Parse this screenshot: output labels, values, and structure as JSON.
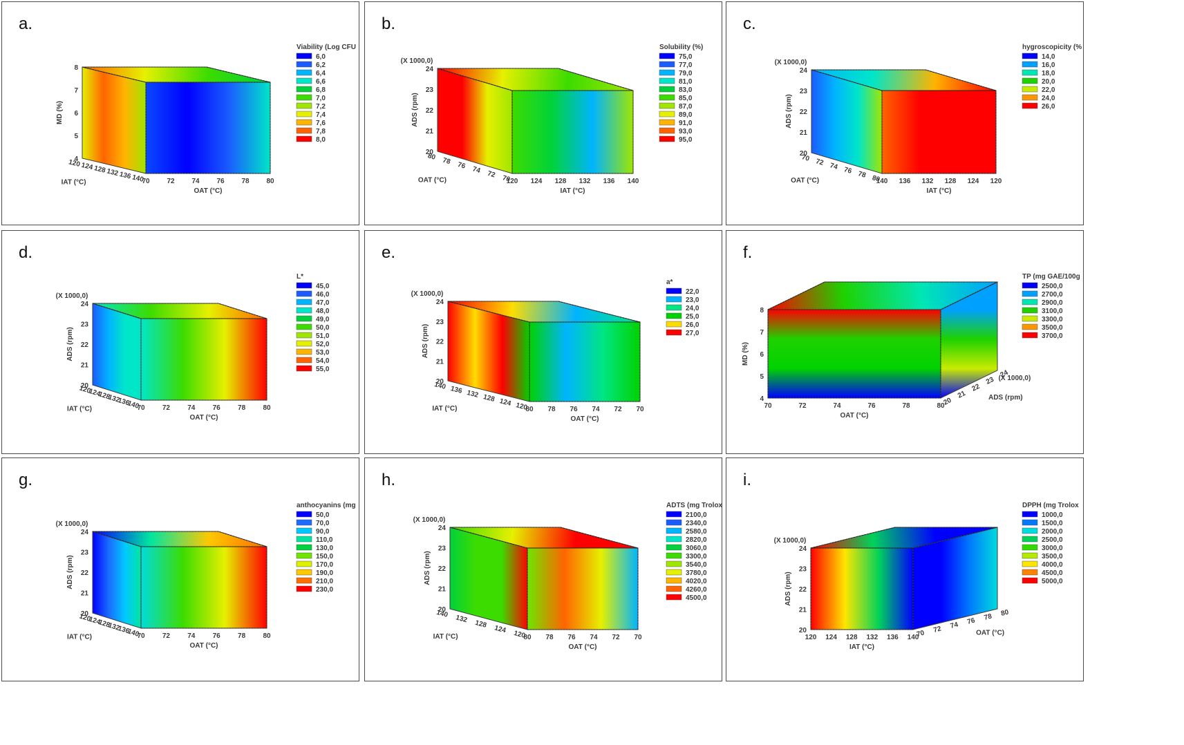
{
  "chart_data": [
    {
      "label": "a.",
      "type": "surface3d",
      "legend_title": "Viability (Log CFU",
      "legend_values": [
        "6,0",
        "6,2",
        "6,4",
        "6,6",
        "6,8",
        "7,0",
        "7,2",
        "7,4",
        "7,6",
        "7,8",
        "8,0"
      ],
      "left_axis": {
        "label": "MD (%)",
        "ticks": [
          "4",
          "5",
          "6",
          "7",
          "8"
        ],
        "multiplier": ""
      },
      "depth_axis": {
        "label": "IAT (°C)",
        "ticks": [
          "120",
          "124",
          "128",
          "132",
          "136",
          "140"
        ]
      },
      "front_axis": {
        "label": "OAT (°C)",
        "ticks": [
          "70",
          "72",
          "74",
          "76",
          "78",
          "80"
        ]
      },
      "right_axis": null
    },
    {
      "label": "b.",
      "type": "surface3d",
      "legend_title": "Solubility (%)",
      "legend_values": [
        "75,0",
        "77,0",
        "79,0",
        "81,0",
        "83,0",
        "85,0",
        "87,0",
        "89,0",
        "91,0",
        "93,0",
        "95,0"
      ],
      "left_axis": {
        "label": "ADS (rpm)",
        "ticks": [
          "20",
          "21",
          "22",
          "23",
          "24"
        ],
        "multiplier": "(X 1000,0)"
      },
      "depth_axis": {
        "label": "OAT (°C)",
        "ticks": [
          "80",
          "78",
          "76",
          "74",
          "72",
          "70"
        ]
      },
      "front_axis": {
        "label": "IAT (°C)",
        "ticks": [
          "120",
          "124",
          "128",
          "132",
          "136",
          "140"
        ]
      },
      "right_axis": null
    },
    {
      "label": "c.",
      "type": "surface3d",
      "legend_title": "hygroscopicity (%",
      "legend_values": [
        "14,0",
        "16,0",
        "18,0",
        "20,0",
        "22,0",
        "24,0",
        "26,0"
      ],
      "left_axis": {
        "label": "ADS (rpm)",
        "ticks": [
          "20",
          "21",
          "22",
          "23",
          "24"
        ],
        "multiplier": "(X 1000,0)"
      },
      "depth_axis": {
        "label": "OAT (°C)",
        "ticks": [
          "70",
          "72",
          "74",
          "76",
          "78",
          "80"
        ]
      },
      "front_axis": {
        "label": "IAT (°C)",
        "ticks": [
          "140",
          "136",
          "132",
          "128",
          "124",
          "120"
        ]
      },
      "right_axis": null
    },
    {
      "label": "d.",
      "type": "surface3d",
      "legend_title": "L*",
      "legend_values": [
        "45,0",
        "46,0",
        "47,0",
        "48,0",
        "49,0",
        "50,0",
        "51,0",
        "52,0",
        "53,0",
        "54,0",
        "55,0"
      ],
      "left_axis": {
        "label": "ADS (rpm)",
        "ticks": [
          "20",
          "21",
          "22",
          "23",
          "24"
        ],
        "multiplier": "(X 1000,0)"
      },
      "depth_axis": {
        "label": "IAT (°C)",
        "ticks": [
          "120",
          "124",
          "128",
          "132",
          "136",
          "140"
        ]
      },
      "front_axis": {
        "label": "OAT (°C)",
        "ticks": [
          "70",
          "72",
          "74",
          "76",
          "78",
          "80"
        ]
      },
      "right_axis": null
    },
    {
      "label": "e.",
      "type": "surface3d",
      "legend_title": "a*",
      "legend_values": [
        "22,0",
        "23,0",
        "24,0",
        "25,0",
        "26,0",
        "27,0"
      ],
      "left_axis": {
        "label": "ADS (rpm)",
        "ticks": [
          "20",
          "21",
          "22",
          "23",
          "24"
        ],
        "multiplier": "(X 1000,0)"
      },
      "depth_axis": {
        "label": "IAT (°C)",
        "ticks": [
          "140",
          "136",
          "132",
          "128",
          "124",
          "120"
        ]
      },
      "front_axis": {
        "label": "OAT (°C)",
        "ticks": [
          "80",
          "78",
          "76",
          "74",
          "72",
          "70"
        ]
      },
      "right_axis": null
    },
    {
      "label": "f.",
      "type": "surface3d",
      "legend_title": "TP (mg GAE/100g",
      "legend_values": [
        "2500,0",
        "2700,0",
        "2900,0",
        "3100,0",
        "3300,0",
        "3500,0",
        "3700,0"
      ],
      "left_axis": {
        "label": "MD (%)",
        "ticks": [
          "4",
          "5",
          "6",
          "7",
          "8"
        ],
        "multiplier": ""
      },
      "depth_axis": null,
      "front_axis": {
        "label": "OAT (°C)",
        "ticks": [
          "70",
          "72",
          "74",
          "76",
          "78",
          "80"
        ]
      },
      "right_axis": {
        "label": "ADS (rpm)",
        "ticks": [
          "20",
          "21",
          "22",
          "23",
          "24"
        ],
        "multiplier": "(X 1000,0)"
      }
    },
    {
      "label": "g.",
      "type": "surface3d",
      "legend_title": "anthocyanins (mg",
      "legend_values": [
        "50,0",
        "70,0",
        "90,0",
        "110,0",
        "130,0",
        "150,0",
        "170,0",
        "190,0",
        "210,0",
        "230,0"
      ],
      "left_axis": {
        "label": "ADS (rpm)",
        "ticks": [
          "20",
          "21",
          "22",
          "23",
          "24"
        ],
        "multiplier": "(X 1000,0)"
      },
      "depth_axis": {
        "label": "IAT (°C)",
        "ticks": [
          "120",
          "124",
          "128",
          "132",
          "136",
          "140"
        ]
      },
      "front_axis": {
        "label": "OAT (°C)",
        "ticks": [
          "70",
          "72",
          "74",
          "76",
          "78",
          "80"
        ]
      },
      "right_axis": null
    },
    {
      "label": "h.",
      "type": "surface3d",
      "legend_title": "ADTS (mg Trolox",
      "legend_values": [
        "2100,0",
        "2340,0",
        "2580,0",
        "2820,0",
        "3060,0",
        "3300,0",
        "3540,0",
        "3780,0",
        "4020,0",
        "4260,0",
        "4500,0"
      ],
      "left_axis": {
        "label": "ADS (rpm)",
        "ticks": [
          "20",
          "21",
          "22",
          "23",
          "24"
        ],
        "multiplier": "(X 1000,0)"
      },
      "depth_axis": {
        "label": "IAT (°C)",
        "ticks": [
          "140",
          "132",
          "128",
          "124",
          "120"
        ]
      },
      "front_axis": {
        "label": "OAT (°C)",
        "ticks": [
          "80",
          "78",
          "76",
          "74",
          "72",
          "70"
        ]
      },
      "right_axis": null
    },
    {
      "label": "i.",
      "type": "surface3d",
      "legend_title": "DPPH (mg Trolox",
      "legend_values": [
        "1000,0",
        "1500,0",
        "2000,0",
        "2500,0",
        "3000,0",
        "3500,0",
        "4000,0",
        "4500,0",
        "5000,0"
      ],
      "left_axis": {
        "label": "ADS (rpm)",
        "ticks": [
          "20",
          "21",
          "22",
          "23",
          "24"
        ],
        "multiplier": "(X 1000,0)"
      },
      "depth_axis": null,
      "front_axis": {
        "label": "IAT (°C)",
        "ticks": [
          "120",
          "124",
          "128",
          "132",
          "136",
          "140"
        ]
      },
      "right_axis": {
        "label": "OAT (°C)",
        "ticks": [
          "70",
          "72",
          "74",
          "76",
          "78",
          "80"
        ]
      }
    }
  ],
  "colors": {
    "scale_11": [
      "#0000ff",
      "#1a5cff",
      "#00b4ff",
      "#00e6c8",
      "#00d23c",
      "#3cdc00",
      "#a0e600",
      "#e6f000",
      "#ffb400",
      "#ff6400",
      "#ff0000"
    ],
    "scale_10": [
      "#0000ff",
      "#1a6cff",
      "#00c8ff",
      "#00e6a0",
      "#00d23c",
      "#6ee600",
      "#dcf000",
      "#ffc800",
      "#ff6e00",
      "#ff0000"
    ],
    "scale_9": [
      "#0000ff",
      "#0078ff",
      "#00dcdc",
      "#00d25a",
      "#32dc00",
      "#b4eb00",
      "#ffe600",
      "#ff8200",
      "#ff0000"
    ],
    "scale_7": [
      "#0000ff",
      "#00a0ff",
      "#00e6b4",
      "#1ed200",
      "#c8eb00",
      "#ff9600",
      "#ff0000"
    ],
    "scale_6": [
      "#0000ff",
      "#00b4ff",
      "#00e682",
      "#00d200",
      "#ffdc00",
      "#ff0000"
    ],
    "edge": "#3a3a3a"
  }
}
